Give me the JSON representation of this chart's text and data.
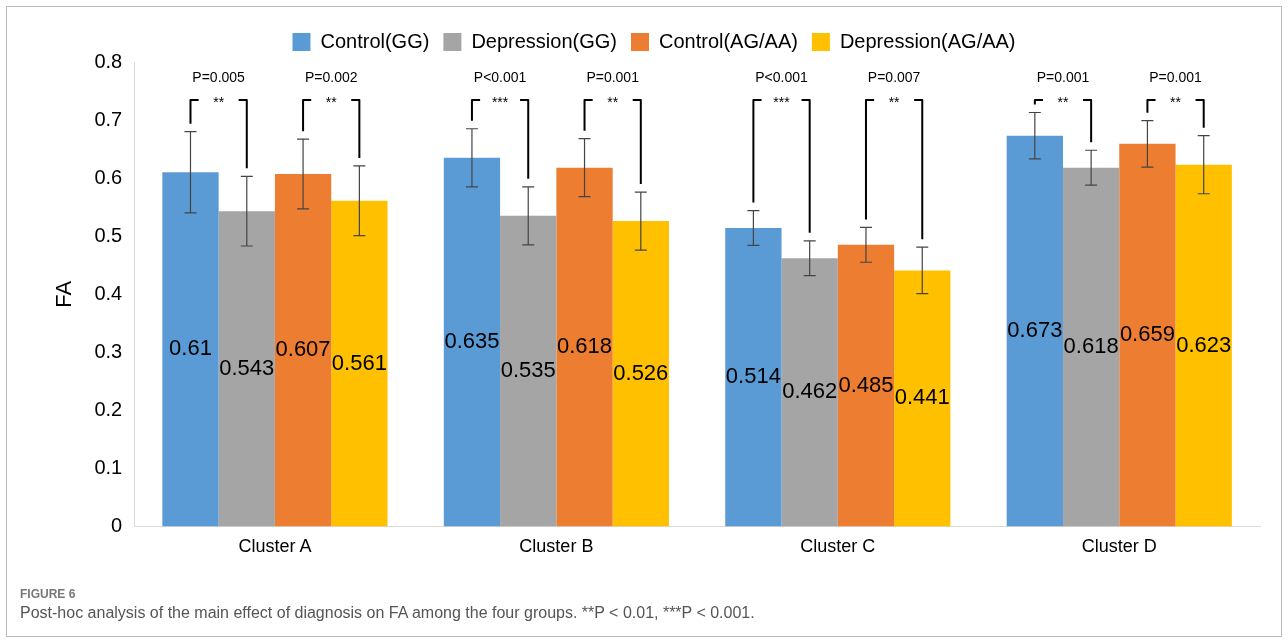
{
  "chart_data": {
    "type": "bar",
    "ylabel": "FA",
    "categories": [
      "Cluster A",
      "Cluster B",
      "Cluster C",
      "Cluster D"
    ],
    "series": [
      {
        "name": "Control(GG)",
        "color": "#5b9bd5",
        "values": [
          0.61,
          0.635,
          0.514,
          0.673
        ],
        "errors": [
          0.07,
          0.05,
          0.03,
          0.04
        ]
      },
      {
        "name": "Depression(GG)",
        "color": "#a5a5a5",
        "values": [
          0.543,
          0.535,
          0.462,
          0.618
        ],
        "errors": [
          0.06,
          0.05,
          0.03,
          0.03
        ]
      },
      {
        "name": "Control(AG/AA)",
        "color": "#ed7d31",
        "values": [
          0.607,
          0.618,
          0.485,
          0.659
        ],
        "errors": [
          0.06,
          0.05,
          0.03,
          0.04
        ]
      },
      {
        "name": "Depression(AG/AA)",
        "color": "#ffc000",
        "values": [
          0.561,
          0.526,
          0.441,
          0.623
        ],
        "errors": [
          0.06,
          0.05,
          0.04,
          0.05
        ]
      }
    ],
    "ylim": [
      0,
      0.8
    ],
    "yticks": [
      0,
      0.1,
      0.2,
      0.3,
      0.4,
      0.5,
      0.6,
      0.7,
      0.8
    ],
    "grid": false,
    "legend": "top",
    "data_labels": true,
    "annotations": [
      "P=0.005",
      "P=0.002",
      "P<0.001",
      "P=0.001",
      "P<0.001",
      "P=0.007",
      "P=0.001",
      "P=0.001",
      "**",
      "**",
      "***",
      "**",
      "***",
      "**",
      "**",
      "**",
      "FIGURE 6",
      "Post-hoc analysis of the main effect of diagnosis on FA among the four groups. **P < 0.01, ***P < 0.001."
    ]
  }
}
